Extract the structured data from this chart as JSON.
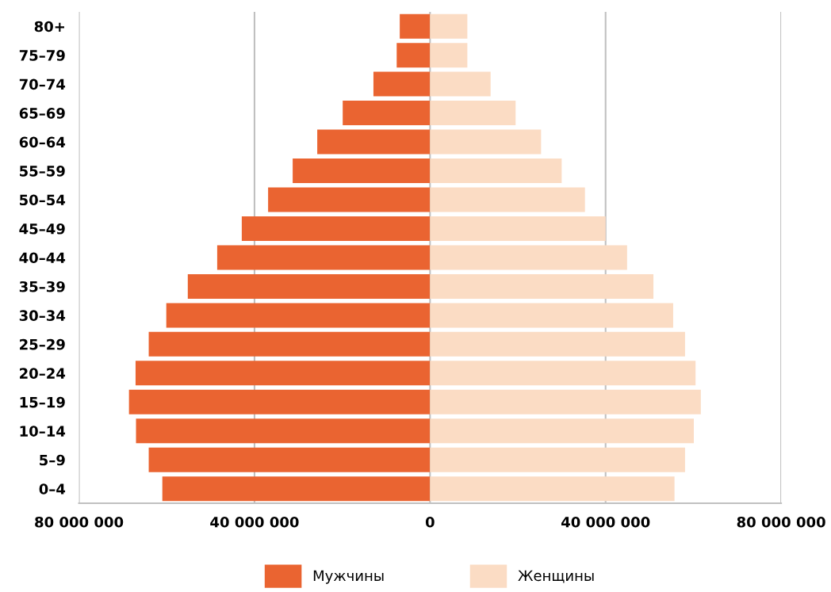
{
  "chart_data": {
    "type": "bar",
    "orientation": "horizontal",
    "stacked": true,
    "categories": [
      "80+",
      "75–79",
      "70–74",
      "65–69",
      "60–64",
      "55–59",
      "50–54",
      "45–49",
      "40–44",
      "35–39",
      "30–34",
      "25–29",
      "20–24",
      "15–19",
      "10–14",
      "5–9",
      "0–4"
    ],
    "series": [
      {
        "name": "Мужчины",
        "color": "#ea6431",
        "values": [
          -6900000,
          -7600000,
          -12900000,
          -19900000,
          -25700000,
          -31300000,
          -36900000,
          -42900000,
          -48500000,
          -55200000,
          -60100000,
          -64100000,
          -67100000,
          -68600000,
          -67000000,
          -64100000,
          -61000000
        ]
      },
      {
        "name": "Женщины",
        "color": "#fbdcc4",
        "values": [
          8500000,
          8500000,
          13800000,
          19500000,
          25300000,
          30000000,
          35300000,
          40000000,
          44900000,
          50900000,
          55400000,
          58100000,
          60500000,
          61700000,
          60100000,
          58100000,
          55700000
        ]
      }
    ],
    "xlim": [
      -80000000,
      80000000
    ],
    "xticks": [
      {
        "value": -80000000,
        "label": "80 000 000"
      },
      {
        "value": -40000000,
        "label": "40 000 000"
      },
      0,
      {
        "value": 40000000,
        "label": "40 000 000"
      },
      {
        "value": 80000000,
        "label": "80 000 000"
      }
    ],
    "grid": "x",
    "legend": "bottom"
  }
}
